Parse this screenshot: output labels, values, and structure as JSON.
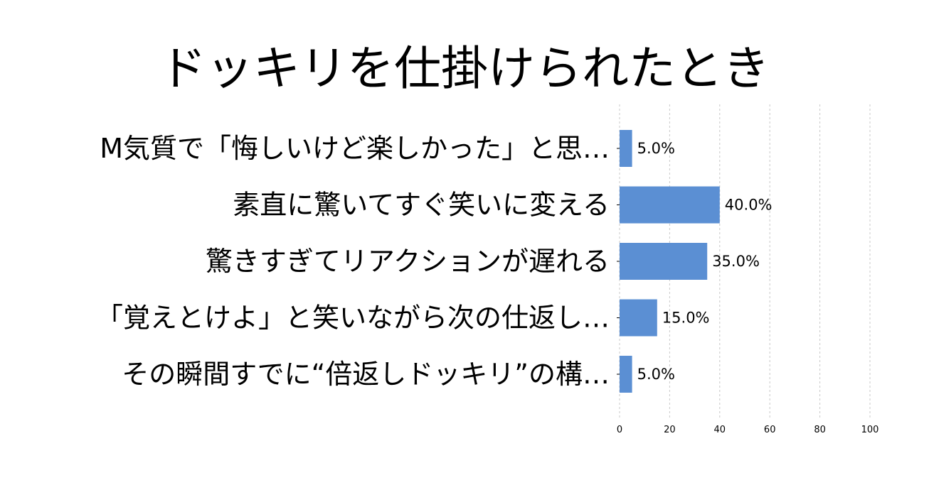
{
  "chart_data": {
    "type": "bar",
    "orientation": "horizontal",
    "title": "ドッキリを仕掛けられたとき",
    "categories": [
      "M気質で「悔しいけど楽しかった」と思…",
      "素直に驚いてすぐ笑いに変える",
      "驚きすぎてリアクションが遅れる",
      "「覚えとけよ」と笑いながら次の仕返し…",
      "その瞬間すでに“倍返しドッキリ”の構…"
    ],
    "values": [
      5.0,
      40.0,
      35.0,
      15.0,
      5.0
    ],
    "value_labels": [
      "5.0%",
      "40.0%",
      "35.0%",
      "15.0%",
      "5.0%"
    ],
    "xlim": [
      0,
      100
    ],
    "xticks": [
      "0",
      "20",
      "40",
      "60",
      "80",
      "100"
    ],
    "xlabel": "",
    "ylabel": "",
    "grid": true,
    "bar_color": "#5b8fd3"
  }
}
